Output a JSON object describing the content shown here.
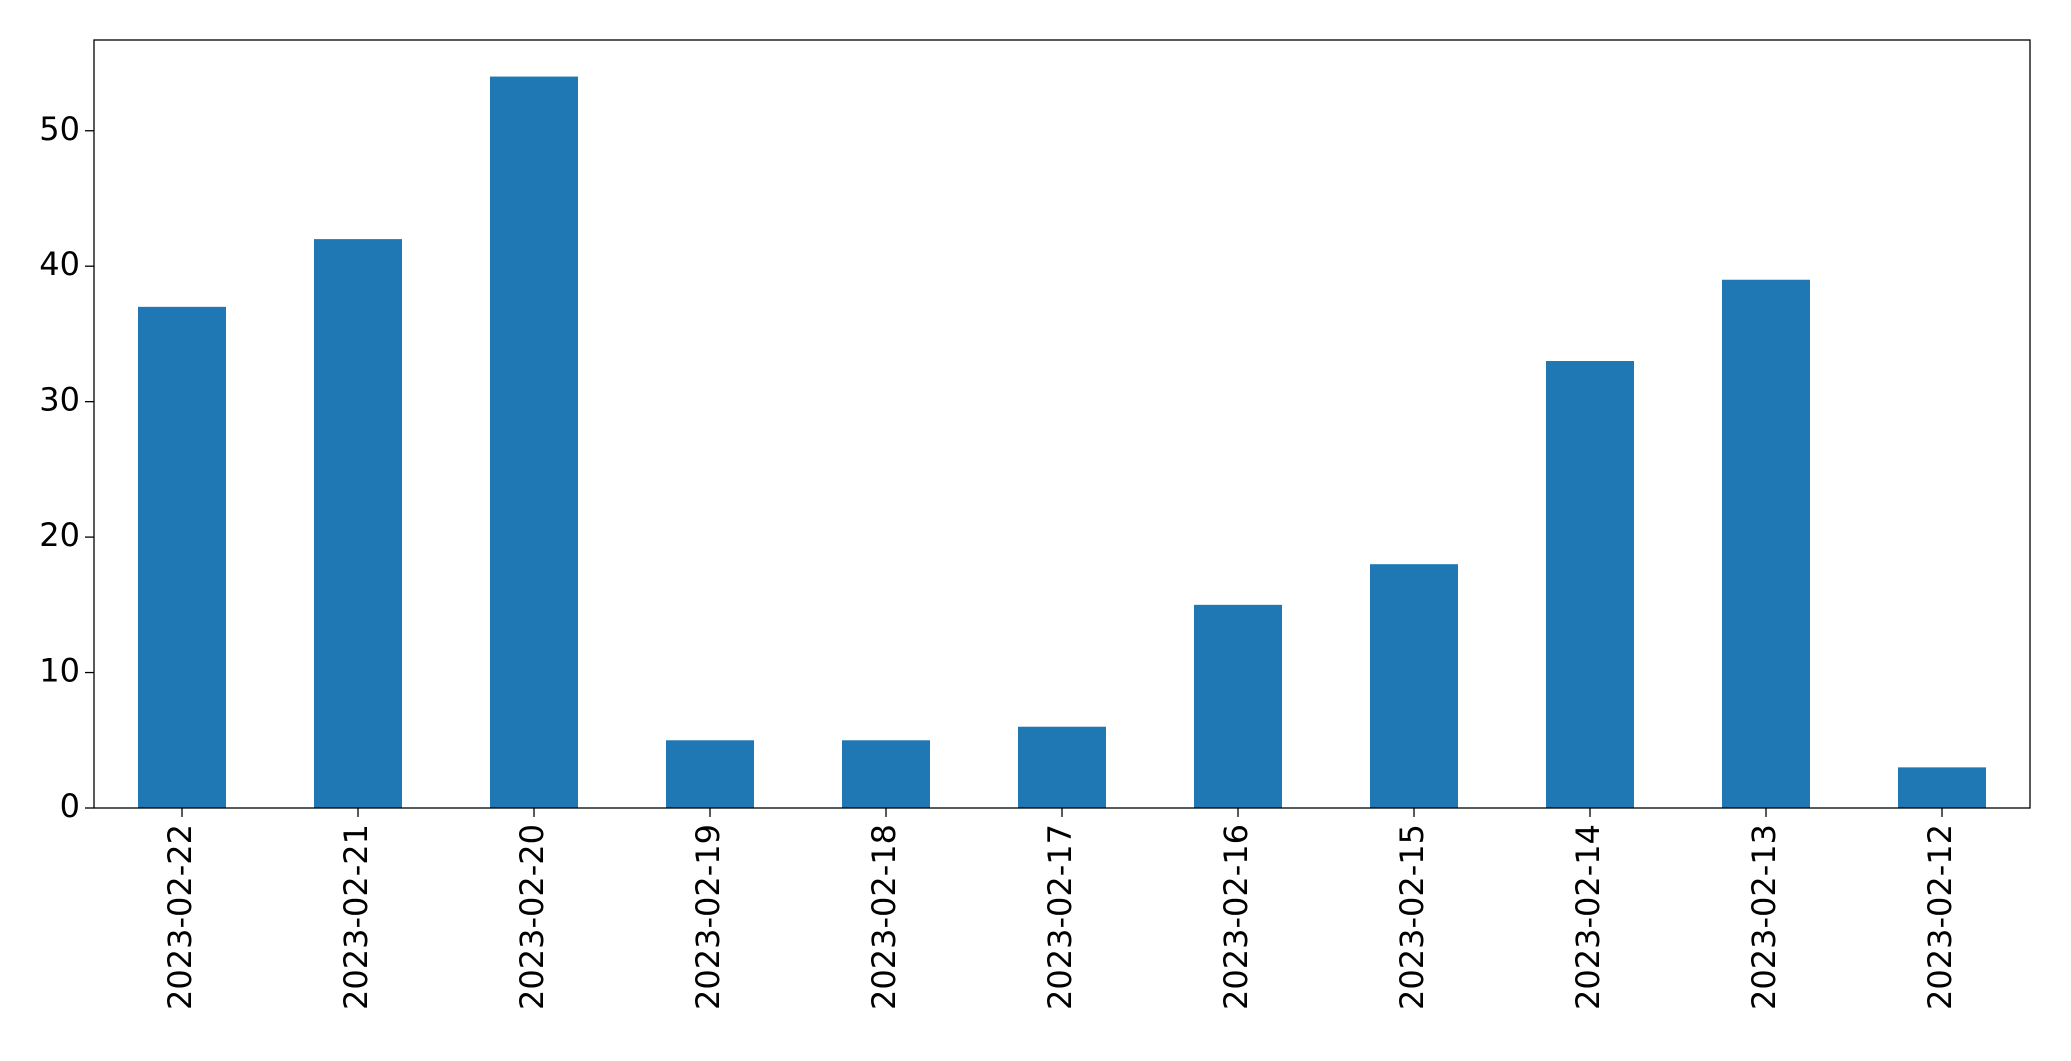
{
  "chart_data": {
    "type": "bar",
    "categories": [
      "2023-02-22",
      "2023-02-21",
      "2023-02-20",
      "2023-02-19",
      "2023-02-18",
      "2023-02-17",
      "2023-02-16",
      "2023-02-15",
      "2023-02-14",
      "2023-02-13",
      "2023-02-12"
    ],
    "values": [
      37,
      42,
      54,
      5,
      5,
      6,
      15,
      18,
      33,
      39,
      3
    ],
    "color": "#1f77b4",
    "ylim": [
      0,
      56.7
    ],
    "yticks": [
      0,
      10,
      20,
      30,
      40,
      50
    ],
    "grid": false
  }
}
